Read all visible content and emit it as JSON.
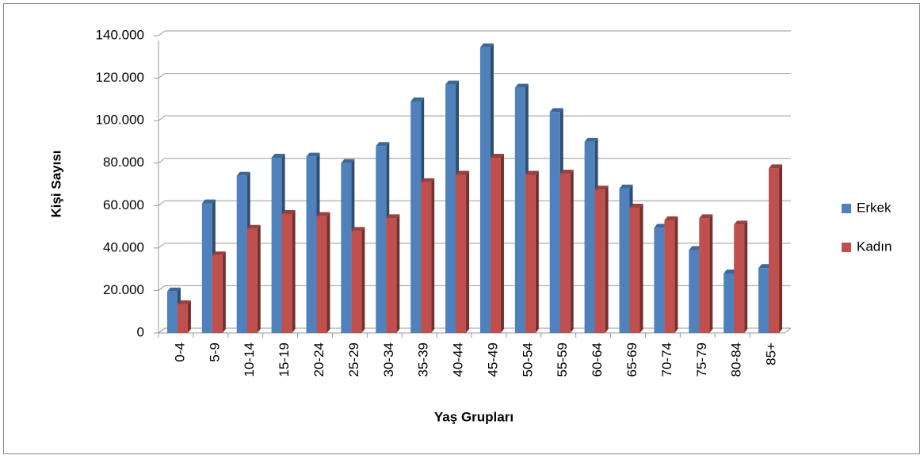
{
  "chart_data": {
    "type": "bar",
    "x_label": "Yaş Grupları",
    "y_label": "Kişi Sayısı",
    "categories": [
      "0-4",
      "5-9",
      "10-14",
      "15-19",
      "20-24",
      "25-29",
      "30-34",
      "35-39",
      "40-44",
      "45-49",
      "50-54",
      "55-59",
      "60-64",
      "65-69",
      "70-74",
      "75-79",
      "80-84",
      "85+"
    ],
    "series": [
      {
        "name": "Erkek",
        "color": "#4f81bd",
        "values": [
          19500,
          61000,
          74000,
          82500,
          83000,
          80000,
          88000,
          109000,
          117000,
          134500,
          115500,
          104000,
          90000,
          68000,
          49500,
          39000,
          28000,
          30500
        ]
      },
      {
        "name": "Kadın",
        "color": "#c0504d",
        "values": [
          13500,
          36500,
          49000,
          56000,
          55000,
          48000,
          54000,
          71000,
          74500,
          82500,
          74500,
          75000,
          67500,
          59000,
          53000,
          54000,
          51000,
          77500
        ]
      }
    ],
    "ylim": [
      0,
      140000
    ],
    "yticks": [
      0,
      {
        "value": 20000,
        "label": "20.000"
      },
      {
        "value": 40000,
        "label": "40.000"
      },
      {
        "value": 60000,
        "label": "60.000"
      },
      {
        "value": 80000,
        "label": "80.000"
      },
      {
        "value": 100000,
        "label": "100.000"
      },
      {
        "value": 120000,
        "label": "120.000"
      },
      {
        "value": 140000,
        "label": "140.000"
      }
    ],
    "grid": true,
    "legend": "right"
  }
}
